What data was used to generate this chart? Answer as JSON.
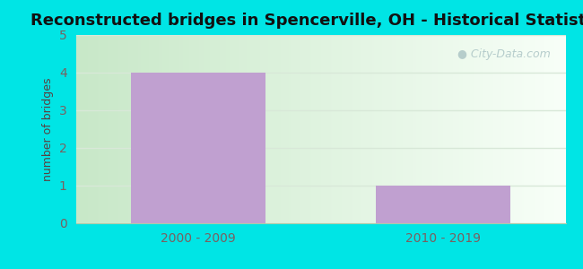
{
  "title": "Reconstructed bridges in Spencerville, OH - Historical Statistics",
  "categories": [
    "2000 - 2009",
    "2010 - 2019"
  ],
  "values": [
    4,
    1
  ],
  "bar_color": "#c0a0d0",
  "ylabel": "number of bridges",
  "ylim": [
    0,
    5
  ],
  "yticks": [
    0,
    1,
    2,
    3,
    4,
    5
  ],
  "background_outer": "#00e5e5",
  "bg_left_color": "#c8e8c8",
  "bg_right_color": "#f0f8f0",
  "bg_top_color": "#e8f8e8",
  "grid_color": "#d8e8d8",
  "title_fontsize": 13,
  "title_color": "#111111",
  "axis_label_color": "#5a4040",
  "tick_label_color": "#7a6060",
  "watermark_text": "City-Data.com",
  "watermark_color": "#b0c8c8"
}
